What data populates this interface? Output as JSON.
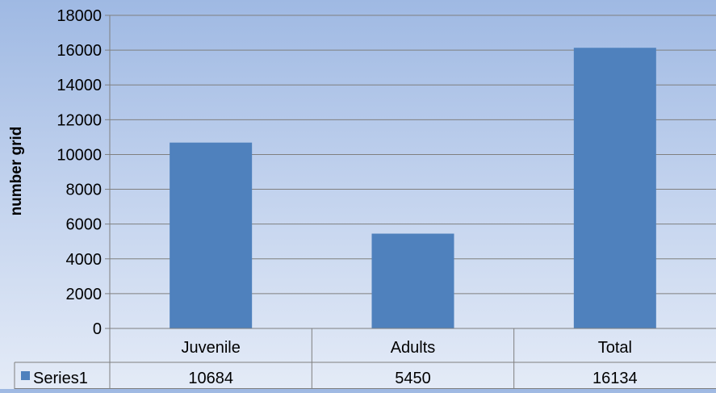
{
  "chart_data": {
    "type": "bar",
    "ylabel": "number grid",
    "ylim": [
      0,
      18000
    ],
    "yticks": [
      0,
      2000,
      4000,
      6000,
      8000,
      10000,
      12000,
      14000,
      16000,
      18000
    ],
    "categories": [
      "Juvenile",
      "Adults",
      "Total"
    ],
    "series": [
      {
        "name": "Series1",
        "values": [
          10684,
          5450,
          16134
        ]
      }
    ],
    "grid": true,
    "legend": "data-table",
    "colors": {
      "bar": "#4f81bd",
      "grid": "#7f7f7f"
    }
  }
}
